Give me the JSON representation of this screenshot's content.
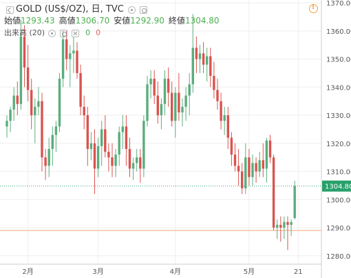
{
  "header": {
    "title": "GOLD (US$/OZ), 日, TVC",
    "ohlc": [
      {
        "label": "始値",
        "value": "1293.43"
      },
      {
        "label": "高値",
        "value": "1306.70"
      },
      {
        "label": "安値",
        "value": "1292.90"
      },
      {
        "label": "終値",
        "value": "1304.80"
      }
    ],
    "indicator": {
      "name": "出来高 (20)",
      "up": "0",
      "down": "0"
    }
  },
  "colors": {
    "up": "#5aad7c",
    "down": "#d9534f",
    "last": "#28a06a",
    "ref": "#f4a57a"
  },
  "chart_data": {
    "type": "candlestick",
    "ylim": [
      1277,
      1371
    ],
    "y_ticks": [
      "1280.00",
      "1290.00",
      "1300.00",
      "1310.00",
      "1320.00",
      "1330.00",
      "1340.00",
      "1350.00",
      "1360.00",
      "1370.00"
    ],
    "x_ticks": [
      {
        "label": "2月",
        "index": 6
      },
      {
        "label": "3月",
        "index": 26
      },
      {
        "label": "4月",
        "index": 48
      },
      {
        "label": "5月",
        "index": 69
      },
      {
        "label": "21",
        "index": 83
      }
    ],
    "last_price": "1304.80",
    "reference_level": 1289,
    "candles": [
      [
        1326,
        1330,
        1322,
        1328
      ],
      [
        1328,
        1333,
        1324,
        1332
      ],
      [
        1332,
        1340,
        1328,
        1337
      ],
      [
        1337,
        1342,
        1330,
        1334
      ],
      [
        1334,
        1364,
        1332,
        1358
      ],
      [
        1358,
        1362,
        1340,
        1347
      ],
      [
        1347,
        1355,
        1335,
        1339
      ],
      [
        1339,
        1343,
        1325,
        1330
      ],
      [
        1330,
        1336,
        1320,
        1333
      ],
      [
        1333,
        1340,
        1330,
        1335
      ],
      [
        1335,
        1338,
        1310,
        1315
      ],
      [
        1315,
        1318,
        1307,
        1312
      ],
      [
        1312,
        1322,
        1308,
        1318
      ],
      [
        1318,
        1326,
        1312,
        1323
      ],
      [
        1323,
        1328,
        1317,
        1326
      ],
      [
        1326,
        1345,
        1324,
        1343
      ],
      [
        1343,
        1360,
        1340,
        1357
      ],
      [
        1357,
        1360,
        1346,
        1350
      ],
      [
        1350,
        1355,
        1340,
        1352
      ],
      [
        1352,
        1358,
        1345,
        1353
      ],
      [
        1353,
        1356,
        1343,
        1345
      ],
      [
        1345,
        1348,
        1330,
        1333
      ],
      [
        1333,
        1337,
        1325,
        1330
      ],
      [
        1330,
        1333,
        1312,
        1318
      ],
      [
        1318,
        1324,
        1314,
        1320
      ],
      [
        1320,
        1325,
        1302,
        1311
      ],
      [
        1311,
        1322,
        1308,
        1319
      ],
      [
        1319,
        1328,
        1312,
        1325
      ],
      [
        1325,
        1330,
        1315,
        1317
      ],
      [
        1317,
        1320,
        1310,
        1315
      ],
      [
        1315,
        1320,
        1308,
        1312
      ],
      [
        1312,
        1318,
        1308,
        1316
      ],
      [
        1316,
        1326,
        1312,
        1324
      ],
      [
        1324,
        1330,
        1318,
        1326
      ],
      [
        1326,
        1330,
        1312,
        1318
      ],
      [
        1318,
        1322,
        1308,
        1311
      ],
      [
        1311,
        1315,
        1307,
        1313
      ],
      [
        1313,
        1318,
        1310,
        1315
      ],
      [
        1315,
        1318,
        1306,
        1311
      ],
      [
        1311,
        1330,
        1308,
        1328
      ],
      [
        1328,
        1344,
        1326,
        1341
      ],
      [
        1341,
        1346,
        1336,
        1343
      ],
      [
        1343,
        1346,
        1334,
        1337
      ],
      [
        1337,
        1342,
        1327,
        1330
      ],
      [
        1330,
        1336,
        1325,
        1334
      ],
      [
        1334,
        1346,
        1330,
        1343
      ],
      [
        1343,
        1347,
        1333,
        1338
      ],
      [
        1338,
        1342,
        1326,
        1328
      ],
      [
        1328,
        1340,
        1322,
        1338
      ],
      [
        1338,
        1345,
        1328,
        1331
      ],
      [
        1331,
        1336,
        1326,
        1333
      ],
      [
        1333,
        1340,
        1328,
        1337
      ],
      [
        1337,
        1345,
        1330,
        1341
      ],
      [
        1341,
        1366,
        1338,
        1354
      ],
      [
        1354,
        1358,
        1345,
        1350
      ],
      [
        1350,
        1355,
        1345,
        1352
      ],
      [
        1352,
        1356,
        1345,
        1348
      ],
      [
        1348,
        1354,
        1342,
        1351
      ],
      [
        1351,
        1354,
        1340,
        1344
      ],
      [
        1344,
        1349,
        1336,
        1339
      ],
      [
        1339,
        1343,
        1332,
        1335
      ],
      [
        1335,
        1338,
        1325,
        1328
      ],
      [
        1328,
        1333,
        1323,
        1330
      ],
      [
        1330,
        1333,
        1318,
        1322
      ],
      [
        1322,
        1324,
        1312,
        1316
      ],
      [
        1316,
        1320,
        1310,
        1312
      ],
      [
        1312,
        1318,
        1305,
        1310
      ],
      [
        1310,
        1313,
        1302,
        1304
      ],
      [
        1304,
        1320,
        1302,
        1315
      ],
      [
        1315,
        1318,
        1305,
        1308
      ],
      [
        1308,
        1316,
        1305,
        1313
      ],
      [
        1313,
        1315,
        1306,
        1310
      ],
      [
        1310,
        1317,
        1308,
        1314
      ],
      [
        1314,
        1320,
        1308,
        1311
      ],
      [
        1311,
        1322,
        1306,
        1321
      ],
      [
        1321,
        1323,
        1313,
        1315
      ],
      [
        1315,
        1316,
        1289,
        1290
      ],
      [
        1290,
        1293,
        1286,
        1291
      ],
      [
        1291,
        1294,
        1285,
        1290
      ],
      [
        1290,
        1294,
        1286,
        1292
      ],
      [
        1292,
        1294,
        1282,
        1291
      ],
      [
        1291,
        1293,
        1287,
        1292
      ],
      [
        1293.43,
        1306.7,
        1292.9,
        1304.8
      ]
    ]
  }
}
